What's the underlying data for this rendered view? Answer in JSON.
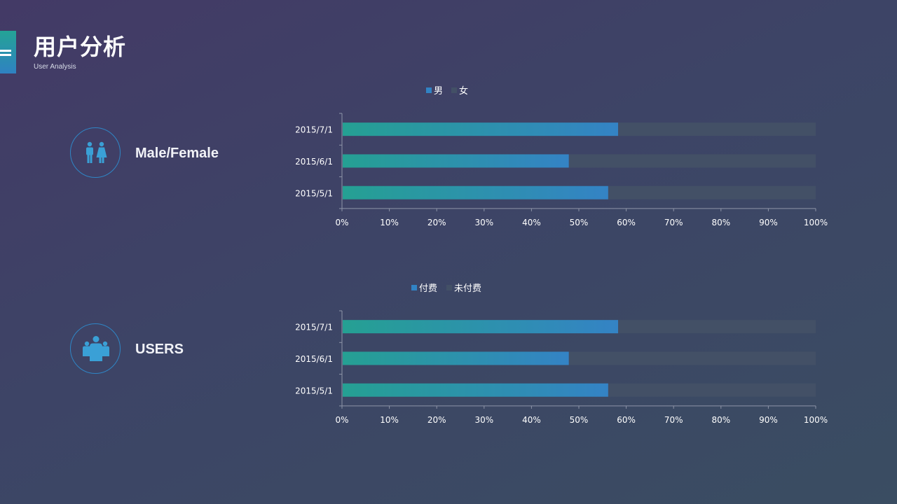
{
  "header": {
    "title": "用户分析",
    "subtitle": "User Analysis"
  },
  "sections": [
    {
      "label": "Male/Female",
      "icon": "male-female-icon"
    },
    {
      "label": "USERS",
      "icon": "users-group-icon"
    }
  ],
  "colors": {
    "bar_start": "#25a093",
    "bar_end": "#3483c5",
    "remainder": "#435066",
    "legend_first": "#3183c4",
    "legend_second": "#435066",
    "axis": "#8e95a8",
    "icon": "#3aa0d6"
  },
  "chart_data": [
    {
      "type": "bar",
      "orientation": "horizontal",
      "stacked": "percent",
      "categories": [
        "2015/7/1",
        "2015/6/1",
        "2015/5/1"
      ],
      "series": [
        {
          "name": "男",
          "values": [
            58.3,
            47.9,
            56.2
          ]
        },
        {
          "name": "女",
          "values": [
            41.7,
            52.1,
            43.8
          ]
        }
      ],
      "xticks": [
        "0%",
        "10%",
        "20%",
        "30%",
        "40%",
        "50%",
        "60%",
        "70%",
        "80%",
        "90%",
        "100%"
      ],
      "xlim": [
        0,
        100
      ],
      "legend": "top",
      "grid": false
    },
    {
      "type": "bar",
      "orientation": "horizontal",
      "stacked": "percent",
      "categories": [
        "2015/7/1",
        "2015/6/1",
        "2015/5/1"
      ],
      "series": [
        {
          "name": "付费",
          "values": [
            58.3,
            47.9,
            56.2
          ]
        },
        {
          "name": "未付费",
          "values": [
            41.7,
            52.1,
            43.8
          ]
        }
      ],
      "xticks": [
        "0%",
        "10%",
        "20%",
        "30%",
        "40%",
        "50%",
        "60%",
        "70%",
        "80%",
        "90%",
        "100%"
      ],
      "xlim": [
        0,
        100
      ],
      "legend": "top",
      "grid": false
    }
  ]
}
